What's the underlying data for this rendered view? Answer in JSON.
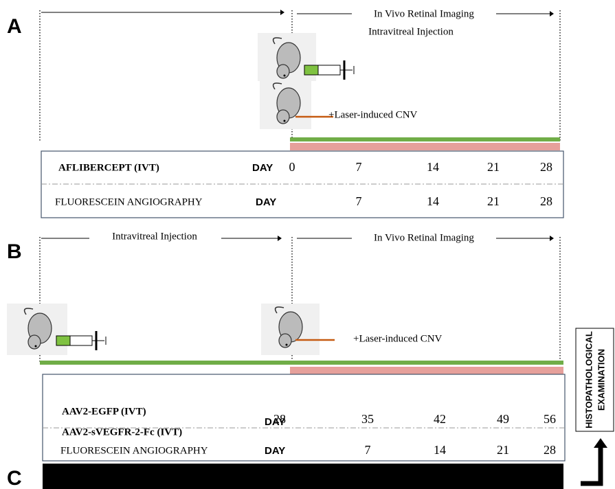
{
  "panels": [
    {
      "label": "A",
      "headers": [
        "In Vivo Retinal Imaging",
        "Intravitreal Injection"
      ],
      "laser": "+Laser-induced CNV",
      "rows": [
        {
          "treatments": [
            "AFLIBERCEPT (IVT)"
          ],
          "day": "DAY",
          "days": [
            0,
            7,
            14,
            21,
            28
          ]
        },
        {
          "treatments": [
            "FLUORESCEIN ANGIOGRAPHY"
          ],
          "day": "DAY",
          "days": [
            7,
            14,
            21,
            28
          ]
        }
      ]
    },
    {
      "label": "B",
      "headers": [
        "Intravitreal Injection",
        "In Vivo Retinal Imaging"
      ],
      "laser": "+Laser-induced CNV",
      "rows": [
        {
          "treatments": [
            "AAV2-EGFP (IVT)",
            "AAV2-sVEGFR-2-Fc (IVT)"
          ],
          "day": "DAY",
          "days": [
            28,
            35,
            42,
            49,
            56
          ]
        },
        {
          "treatments": [
            "FLUORESCEIN ANGIOGRAPHY"
          ],
          "day": "DAY",
          "days": [
            7,
            14,
            21,
            28
          ]
        }
      ]
    },
    {
      "label": "C"
    }
  ],
  "side_box": [
    "HISTOPATHOLOGICAL",
    "EXAMINATION"
  ]
}
